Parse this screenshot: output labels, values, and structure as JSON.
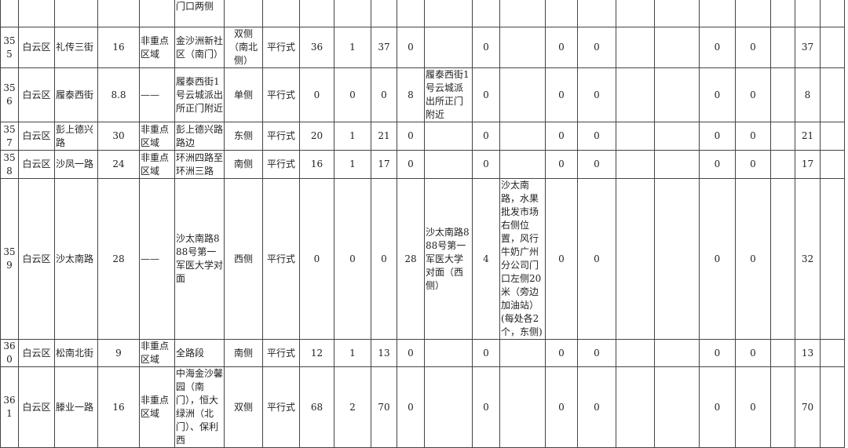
{
  "table": {
    "rows": [
      [
        "",
        "",
        "",
        "",
        "",
        "门口两侧",
        "",
        "",
        "",
        "",
        "",
        "",
        "",
        "",
        "",
        "",
        "",
        "",
        "",
        "",
        "",
        "",
        "",
        ""
      ],
      [
        "355",
        "白云区",
        "礼传三街",
        "16",
        "非重点区域",
        "金沙洲新社区（南门）",
        "双侧（南北侧）",
        "平行式",
        "36",
        "1",
        "37",
        "0",
        "",
        "0",
        "",
        "0",
        "0",
        "",
        "",
        "0",
        "0",
        "",
        "37",
        ""
      ],
      [
        "356",
        "白云区",
        "履泰西街",
        "8.8",
        "——",
        "履泰西街1号云城派出所正门附近",
        "单侧",
        "平行式",
        "0",
        "0",
        "0",
        "8",
        "履泰西街1号云城派出所正门附近",
        "0",
        "",
        "0",
        "0",
        "",
        "",
        "0",
        "0",
        "",
        "8",
        ""
      ],
      [
        "357",
        "白云区",
        "彭上德兴路",
        "30",
        "非重点区域",
        "彭上德兴路路边",
        "东侧",
        "平行式",
        "20",
        "1",
        "21",
        "0",
        "",
        "0",
        "",
        "0",
        "0",
        "",
        "",
        "0",
        "0",
        "",
        "21",
        ""
      ],
      [
        "358",
        "白云区",
        "沙凤一路",
        "24",
        "非重点区域",
        "环洲四路至环洲三路",
        "南侧",
        "平行式",
        "16",
        "1",
        "17",
        "0",
        "",
        "0",
        "",
        "0",
        "0",
        "",
        "",
        "0",
        "0",
        "",
        "17",
        ""
      ],
      [
        "359",
        "白云区",
        "沙太南路",
        "28",
        "——",
        "沙太南路888号第一军医大学对面",
        "西侧",
        "平行式",
        "0",
        "0",
        "0",
        "28",
        "沙太南路888号第一军医大学对面（西侧）",
        "4",
        "沙太南路，水果批发市场右侧位置，风行牛奶广州分公司门口左侧20米（旁边加油站）(每处各2个，东侧)",
        "0",
        "0",
        "",
        "",
        "0",
        "0",
        "",
        "32",
        ""
      ],
      [
        "360",
        "白云区",
        "松南北街",
        "9",
        "非重点区域",
        "全路段",
        "南侧",
        "平行式",
        "12",
        "1",
        "13",
        "0",
        "",
        "0",
        "",
        "0",
        "0",
        "",
        "",
        "0",
        "0",
        "",
        "13",
        ""
      ],
      [
        "361",
        "白云区",
        "滕业一路",
        "16",
        "非重点区域",
        "中海金沙馨园（南门），恒大绿洲（北门）、保利西",
        "双侧",
        "平行式",
        "68",
        "2",
        "70",
        "0",
        "",
        "0",
        "",
        "0",
        "0",
        "",
        "",
        "0",
        "0",
        "",
        "70",
        ""
      ]
    ]
  }
}
